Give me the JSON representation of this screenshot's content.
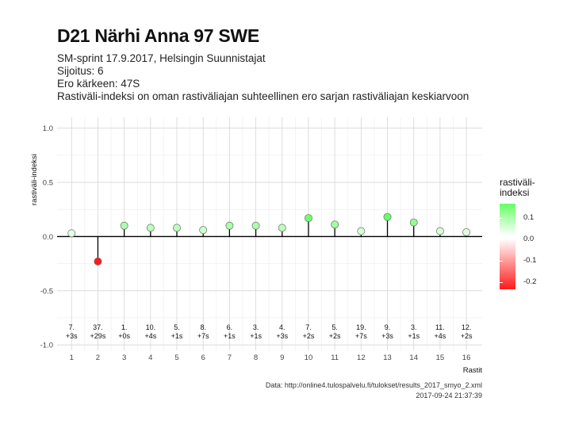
{
  "header": {
    "title": "D21 Närhi Anna 97 SWE",
    "lines": [
      "SM-sprint 17.9.2017, Helsingin Suunnistajat",
      "Sijoitus: 6",
      "Ero kärkeen: 47S",
      "Rastiväli-indeksi on oman rastiväliajan suhteellinen ero sarjan rastiväliajan keskiarvoon"
    ]
  },
  "footer": {
    "source": "Data: http://online4.tulospalvelu.fi/tulokset/results_2017_smyo_2.xml",
    "timestamp": "2017-09-24 21:37:39"
  },
  "legend": {
    "title": [
      "rastiväli-",
      "indeksi"
    ],
    "labels": [
      "0.1",
      "0.0",
      "-0.1",
      "-0.2"
    ],
    "low_color": "#ff1a1a",
    "mid_color": "#ffffff",
    "high_color": "#66ff66"
  },
  "chart_data": {
    "type": "lollipop",
    "xlabel": "Rastit",
    "ylabel": "rastiväli-indeksi",
    "ylim": [
      -1.05,
      1.1
    ],
    "xlim": [
      0.45,
      16.6
    ],
    "yticks": [
      1.0,
      0.5,
      0.0,
      -0.5,
      -1.0
    ],
    "ytick_labels": [
      "1.0",
      "0.5",
      "0.0",
      "-0.5",
      "-1.0"
    ],
    "x": [
      1,
      2,
      3,
      4,
      5,
      6,
      7,
      8,
      9,
      10,
      11,
      12,
      13,
      14,
      15,
      16
    ],
    "values": [
      0.03,
      -0.23,
      0.1,
      0.08,
      0.08,
      0.06,
      0.1,
      0.1,
      0.08,
      0.17,
      0.11,
      0.05,
      0.18,
      0.13,
      0.05,
      0.04
    ],
    "rank_labels": [
      "7.",
      "37.",
      "1.",
      "10.",
      "5.",
      "8.",
      "6.",
      "3.",
      "4.",
      "7.",
      "5.",
      "19.",
      "9.",
      "3.",
      "11.",
      "12."
    ],
    "diff_labels": [
      "+3s",
      "+29s",
      "+0s",
      "+4s",
      "+1s",
      "+7s",
      "+1s",
      "+1s",
      "+3s",
      "+2s",
      "+2s",
      "+7s",
      "+3s",
      "+1s",
      "+4s",
      "+2s"
    ],
    "color_scale": [
      -0.23,
      0.18
    ],
    "grid": true,
    "legend": "right"
  }
}
